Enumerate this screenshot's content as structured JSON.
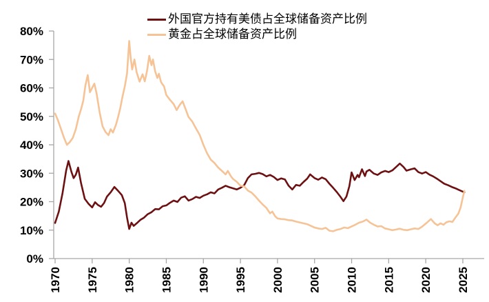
{
  "chart_data": {
    "type": "line",
    "title": "",
    "xlabel": "",
    "ylabel": "",
    "grid": false,
    "legend_position": "top-center",
    "ylim": [
      0,
      80
    ],
    "xlim": [
      1970,
      2027.5
    ],
    "ytick_labels": [
      "0%",
      "10%",
      "20%",
      "30%",
      "40%",
      "50%",
      "60%",
      "70%",
      "80%"
    ],
    "xtick_labels": [
      "1970",
      "1975",
      "1980",
      "1985",
      "1990",
      "1995",
      "2000",
      "2005",
      "2010",
      "2015",
      "2020",
      "2025"
    ],
    "series": [
      {
        "name": "外国官方持有美债占全球储备资产比例",
        "color": "#6D1012",
        "points": [
          [
            1970,
            12.5
          ],
          [
            1970.5,
            16.5
          ],
          [
            1971,
            23
          ],
          [
            1971.5,
            31
          ],
          [
            1971.8,
            34.3
          ],
          [
            1972.2,
            30.5
          ],
          [
            1972.5,
            28.3
          ],
          [
            1972.8,
            29.5
          ],
          [
            1973.1,
            32
          ],
          [
            1973.5,
            26.5
          ],
          [
            1974,
            21
          ],
          [
            1974.5,
            19.3
          ],
          [
            1975,
            18
          ],
          [
            1975.4,
            19.8
          ],
          [
            1975.8,
            18.8
          ],
          [
            1976.2,
            18.2
          ],
          [
            1976.6,
            19.5
          ],
          [
            1977,
            21.8
          ],
          [
            1977.5,
            23.3
          ],
          [
            1978,
            25.2
          ],
          [
            1978.5,
            23.8
          ],
          [
            1979,
            22.3
          ],
          [
            1979.4,
            19.5
          ],
          [
            1979.7,
            14.5
          ],
          [
            1980,
            10.4
          ],
          [
            1980.3,
            12.6
          ],
          [
            1980.6,
            11.5
          ],
          [
            1981,
            12.4
          ],
          [
            1981.5,
            13.6
          ],
          [
            1982,
            14.4
          ],
          [
            1982.5,
            15.6
          ],
          [
            1983,
            16.3
          ],
          [
            1983.5,
            17.4
          ],
          [
            1984,
            17.3
          ],
          [
            1984.5,
            18.4
          ],
          [
            1985,
            18.7
          ],
          [
            1985.5,
            19.6
          ],
          [
            1986,
            20.4
          ],
          [
            1986.5,
            19.9
          ],
          [
            1987,
            21.4
          ],
          [
            1987.5,
            21.9
          ],
          [
            1988,
            20.4
          ],
          [
            1988.5,
            20.9
          ],
          [
            1989,
            21.7
          ],
          [
            1989.5,
            21.3
          ],
          [
            1990,
            22.1
          ],
          [
            1990.5,
            22.6
          ],
          [
            1991,
            23.3
          ],
          [
            1991.5,
            22.9
          ],
          [
            1992,
            24.3
          ],
          [
            1992.5,
            24.9
          ],
          [
            1993,
            25.6
          ],
          [
            1993.5,
            25.1
          ],
          [
            1994,
            24.7
          ],
          [
            1994.5,
            24.3
          ],
          [
            1995,
            24.9
          ],
          [
            1995.5,
            25.8
          ],
          [
            1996,
            28.3
          ],
          [
            1996.5,
            29.6
          ],
          [
            1997,
            29.8
          ],
          [
            1997.5,
            30.1
          ],
          [
            1998,
            29.7
          ],
          [
            1998.5,
            28.9
          ],
          [
            1999,
            29.4
          ],
          [
            1999.5,
            28.7
          ],
          [
            2000,
            27.6
          ],
          [
            2000.5,
            28.2
          ],
          [
            2001,
            27.8
          ],
          [
            2001.5,
            25.6
          ],
          [
            2002,
            24.3
          ],
          [
            2002.5,
            25.9
          ],
          [
            2003,
            25.6
          ],
          [
            2003.5,
            26.9
          ],
          [
            2004,
            28.1
          ],
          [
            2004.4,
            29.6
          ],
          [
            2005,
            28.3
          ],
          [
            2005.5,
            27.7
          ],
          [
            2006,
            28.5
          ],
          [
            2006.5,
            27.9
          ],
          [
            2007,
            26.3
          ],
          [
            2007.5,
            24.9
          ],
          [
            2008,
            23.4
          ],
          [
            2008.5,
            21.7
          ],
          [
            2008.9,
            20.2
          ],
          [
            2009.3,
            21.8
          ],
          [
            2009.7,
            25.5
          ],
          [
            2010,
            30.3
          ],
          [
            2010.4,
            27.6
          ],
          [
            2010.8,
            29.4
          ],
          [
            2011,
            28.6
          ],
          [
            2011.4,
            31.4
          ],
          [
            2011.8,
            29
          ],
          [
            2012,
            30.6
          ],
          [
            2012.4,
            31.2
          ],
          [
            2013,
            29.9
          ],
          [
            2013.5,
            29.4
          ],
          [
            2014,
            30.3
          ],
          [
            2014.5,
            30.8
          ],
          [
            2015,
            30.4
          ],
          [
            2015.5,
            31
          ],
          [
            2016,
            32.2
          ],
          [
            2016.5,
            33.4
          ],
          [
            2017,
            32.2
          ],
          [
            2017.4,
            30.9
          ],
          [
            2018,
            31.4
          ],
          [
            2018.5,
            31.7
          ],
          [
            2019,
            30.4
          ],
          [
            2019.5,
            29.9
          ],
          [
            2020,
            30.4
          ],
          [
            2020.5,
            29.5
          ],
          [
            2021,
            28.9
          ],
          [
            2021.5,
            28.1
          ],
          [
            2022,
            27.2
          ],
          [
            2022.5,
            26.3
          ],
          [
            2023,
            25.8
          ],
          [
            2023.5,
            25.2
          ],
          [
            2024,
            24.7
          ],
          [
            2024.5,
            24.1
          ],
          [
            2025.2,
            23.3
          ]
        ]
      },
      {
        "name": "黄金占全球储备资产比例",
        "color": "#F6C396",
        "points": [
          [
            1970,
            51
          ],
          [
            1970.4,
            48.5
          ],
          [
            1970.8,
            45.5
          ],
          [
            1971.2,
            42.5
          ],
          [
            1971.6,
            40
          ],
          [
            1972,
            41
          ],
          [
            1972.4,
            42.5
          ],
          [
            1972.8,
            45.5
          ],
          [
            1973.2,
            50
          ],
          [
            1973.5,
            52.5
          ],
          [
            1973.8,
            55.5
          ],
          [
            1974.1,
            61
          ],
          [
            1974.4,
            64.5
          ],
          [
            1974.7,
            58.5
          ],
          [
            1975,
            60
          ],
          [
            1975.3,
            61.5
          ],
          [
            1975.6,
            58
          ],
          [
            1976,
            51.5
          ],
          [
            1976.4,
            46.5
          ],
          [
            1976.8,
            44.5
          ],
          [
            1977.2,
            43.4
          ],
          [
            1977.5,
            45.5
          ],
          [
            1977.8,
            44.3
          ],
          [
            1978.2,
            47
          ],
          [
            1978.5,
            49.8
          ],
          [
            1978.8,
            53
          ],
          [
            1979.1,
            57
          ],
          [
            1979.4,
            60.5
          ],
          [
            1979.7,
            65
          ],
          [
            1980,
            76.5
          ],
          [
            1980.2,
            70.5
          ],
          [
            1980.4,
            66.5
          ],
          [
            1980.7,
            70
          ],
          [
            1981,
            65.5
          ],
          [
            1981.4,
            62.2
          ],
          [
            1981.8,
            64.8
          ],
          [
            1982.1,
            62.3
          ],
          [
            1982.4,
            66
          ],
          [
            1982.7,
            71.3
          ],
          [
            1983,
            68
          ],
          [
            1983.2,
            70
          ],
          [
            1983.5,
            65.8
          ],
          [
            1983.8,
            63.5
          ],
          [
            1984,
            65
          ],
          [
            1984.3,
            62
          ],
          [
            1984.7,
            60.5
          ],
          [
            1985,
            57.5
          ],
          [
            1985.5,
            55.8
          ],
          [
            1986,
            54.3
          ],
          [
            1986.4,
            52.2
          ],
          [
            1986.8,
            54
          ],
          [
            1987.2,
            55.3
          ],
          [
            1987.6,
            52.6
          ],
          [
            1988,
            49.8
          ],
          [
            1988.5,
            48.2
          ],
          [
            1989,
            45.8
          ],
          [
            1989.5,
            43.5
          ],
          [
            1990,
            40
          ],
          [
            1990.5,
            37
          ],
          [
            1991,
            34.8
          ],
          [
            1991.5,
            33.6
          ],
          [
            1992,
            32
          ],
          [
            1992.5,
            30.8
          ],
          [
            1993,
            29.6
          ],
          [
            1993.3,
            30.8
          ],
          [
            1993.7,
            29
          ],
          [
            1994,
            28
          ],
          [
            1994.5,
            27
          ],
          [
            1995,
            25.6
          ],
          [
            1995.5,
            25.4
          ],
          [
            1996,
            23.9
          ],
          [
            1996.5,
            23.2
          ],
          [
            1997,
            21.9
          ],
          [
            1997.5,
            20.4
          ],
          [
            1998,
            19
          ],
          [
            1998.5,
            17.8
          ],
          [
            1999,
            15.9
          ],
          [
            1999.3,
            16.5
          ],
          [
            1999.7,
            14.8
          ],
          [
            2000,
            14.1
          ],
          [
            2000.5,
            13.9
          ],
          [
            2001,
            13.8
          ],
          [
            2001.5,
            13.5
          ],
          [
            2002,
            13.4
          ],
          [
            2002.5,
            13
          ],
          [
            2003,
            12.7
          ],
          [
            2003.5,
            12.4
          ],
          [
            2004,
            12.1
          ],
          [
            2004.5,
            11.5
          ],
          [
            2005,
            10.9
          ],
          [
            2005.5,
            10.6
          ],
          [
            2006,
            10.4
          ],
          [
            2006.5,
            10.8
          ],
          [
            2007,
            9.8
          ],
          [
            2007.5,
            9.6
          ],
          [
            2008,
            10.1
          ],
          [
            2008.5,
            10.4
          ],
          [
            2009,
            10.9
          ],
          [
            2009.5,
            10.7
          ],
          [
            2010,
            11.3
          ],
          [
            2010.5,
            11.9
          ],
          [
            2011,
            12.6
          ],
          [
            2011.5,
            13
          ],
          [
            2012,
            13.7
          ],
          [
            2012.5,
            12.6
          ],
          [
            2013,
            11.9
          ],
          [
            2013.5,
            11.3
          ],
          [
            2014,
            11.4
          ],
          [
            2014.5,
            10.6
          ],
          [
            2015,
            10.3
          ],
          [
            2015.5,
            10
          ],
          [
            2016,
            10.2
          ],
          [
            2016.5,
            10.5
          ],
          [
            2017,
            10.1
          ],
          [
            2017.5,
            10
          ],
          [
            2018,
            10.3
          ],
          [
            2018.5,
            10.6
          ],
          [
            2019,
            10.4
          ],
          [
            2019.5,
            11.2
          ],
          [
            2020,
            12.3
          ],
          [
            2020.7,
            13.9
          ],
          [
            2021.2,
            12.4
          ],
          [
            2021.6,
            11.7
          ],
          [
            2022,
            12.4
          ],
          [
            2022.4,
            11.9
          ],
          [
            2022.8,
            12.8
          ],
          [
            2023.2,
            13.1
          ],
          [
            2023.6,
            12.9
          ],
          [
            2024,
            14.4
          ],
          [
            2024.4,
            15.8
          ],
          [
            2024.7,
            18
          ],
          [
            2025,
            21.5
          ],
          [
            2025.2,
            23.8
          ]
        ]
      }
    ]
  },
  "colors": {
    "background": "#FFFFFF",
    "axis": "#A6A6A6",
    "tick_text": "#000000"
  }
}
